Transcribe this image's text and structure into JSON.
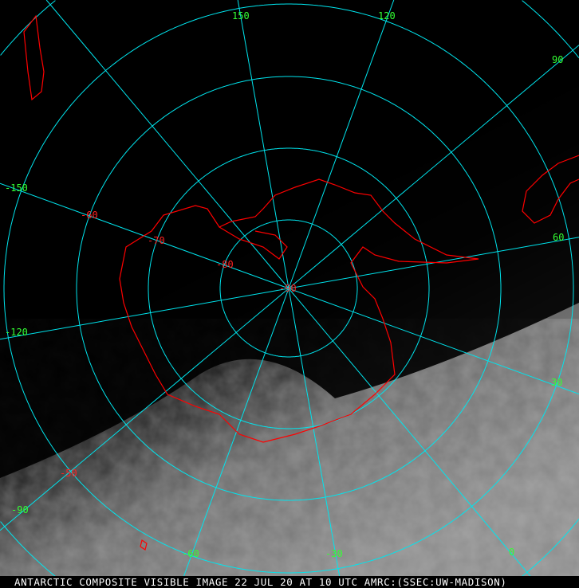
{
  "caption": "ANTARCTIC COMPOSITE VISIBLE IMAGE 22 JUL 20 AT 10 UTC AMRC:(SSEC:UW-MADISON)",
  "colors": {
    "grid": "#00e5ee",
    "coast": "#ff0000",
    "lon_label": "#33ff33",
    "lat_label": "#ff2222",
    "background": "#000000",
    "clouds": "#8a8a8a"
  },
  "projection": "south-polar-stereographic",
  "longitude_labels": [
    "150",
    "120",
    "90",
    "60",
    "30",
    "0",
    "-30",
    "-60",
    "-90",
    "-120",
    "-150"
  ],
  "latitude_labels": [
    "-50",
    "-60",
    "-70",
    "-80",
    "-90"
  ],
  "meridians_deg": [
    0,
    30,
    60,
    90,
    120,
    150,
    180,
    -150,
    -120,
    -90,
    -60,
    -30
  ],
  "parallels_deg": [
    -80,
    -70,
    -60,
    -50,
    -40
  ]
}
